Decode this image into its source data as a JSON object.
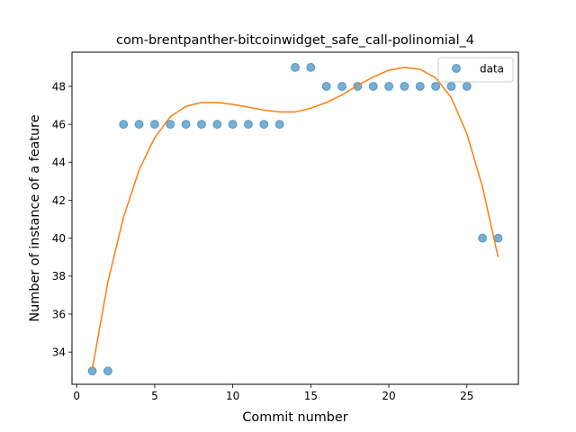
{
  "chart_data": {
    "type": "scatter",
    "title": "com-brentpanther-bitcoinwidget_safe_call-polinomial_4",
    "xlabel": "Commit number",
    "ylabel": "Number of instance of a feature",
    "xlim": [
      -0.3,
      28.3
    ],
    "ylim": [
      32.3,
      49.8
    ],
    "xticks": [
      0,
      5,
      10,
      15,
      20,
      25
    ],
    "yticks": [
      34,
      36,
      38,
      40,
      42,
      44,
      46,
      48
    ],
    "legend_position": "top-right",
    "grid": false,
    "series": [
      {
        "name": "data",
        "kind": "scatter",
        "color": "#1f77b4",
        "x": [
          1,
          2,
          3,
          4,
          5,
          6,
          7,
          8,
          9,
          10,
          11,
          12,
          13,
          14,
          15,
          16,
          17,
          18,
          19,
          20,
          21,
          22,
          23,
          24,
          25,
          26,
          27
        ],
        "y": [
          33,
          33,
          46,
          46,
          46,
          46,
          46,
          46,
          46,
          46,
          46,
          46,
          46,
          49,
          49,
          48,
          48,
          48,
          48,
          48,
          48,
          48,
          48,
          48,
          48,
          40,
          40
        ]
      },
      {
        "kind": "line",
        "color": "#ff7f0e",
        "x": [
          1,
          2,
          3,
          4,
          5,
          6,
          7,
          8,
          9,
          10,
          11,
          12,
          13,
          14,
          15,
          16,
          17,
          18,
          19,
          20,
          21,
          22,
          23,
          24,
          25,
          26,
          27
        ],
        "y": [
          33.1,
          37.7,
          41.1,
          43.6,
          45.3,
          46.4,
          46.95,
          47.15,
          47.15,
          47.05,
          46.9,
          46.75,
          46.65,
          46.65,
          46.85,
          47.15,
          47.55,
          48.05,
          48.5,
          48.85,
          49.0,
          48.9,
          48.45,
          47.4,
          45.5,
          42.7,
          39.0
        ]
      }
    ]
  }
}
